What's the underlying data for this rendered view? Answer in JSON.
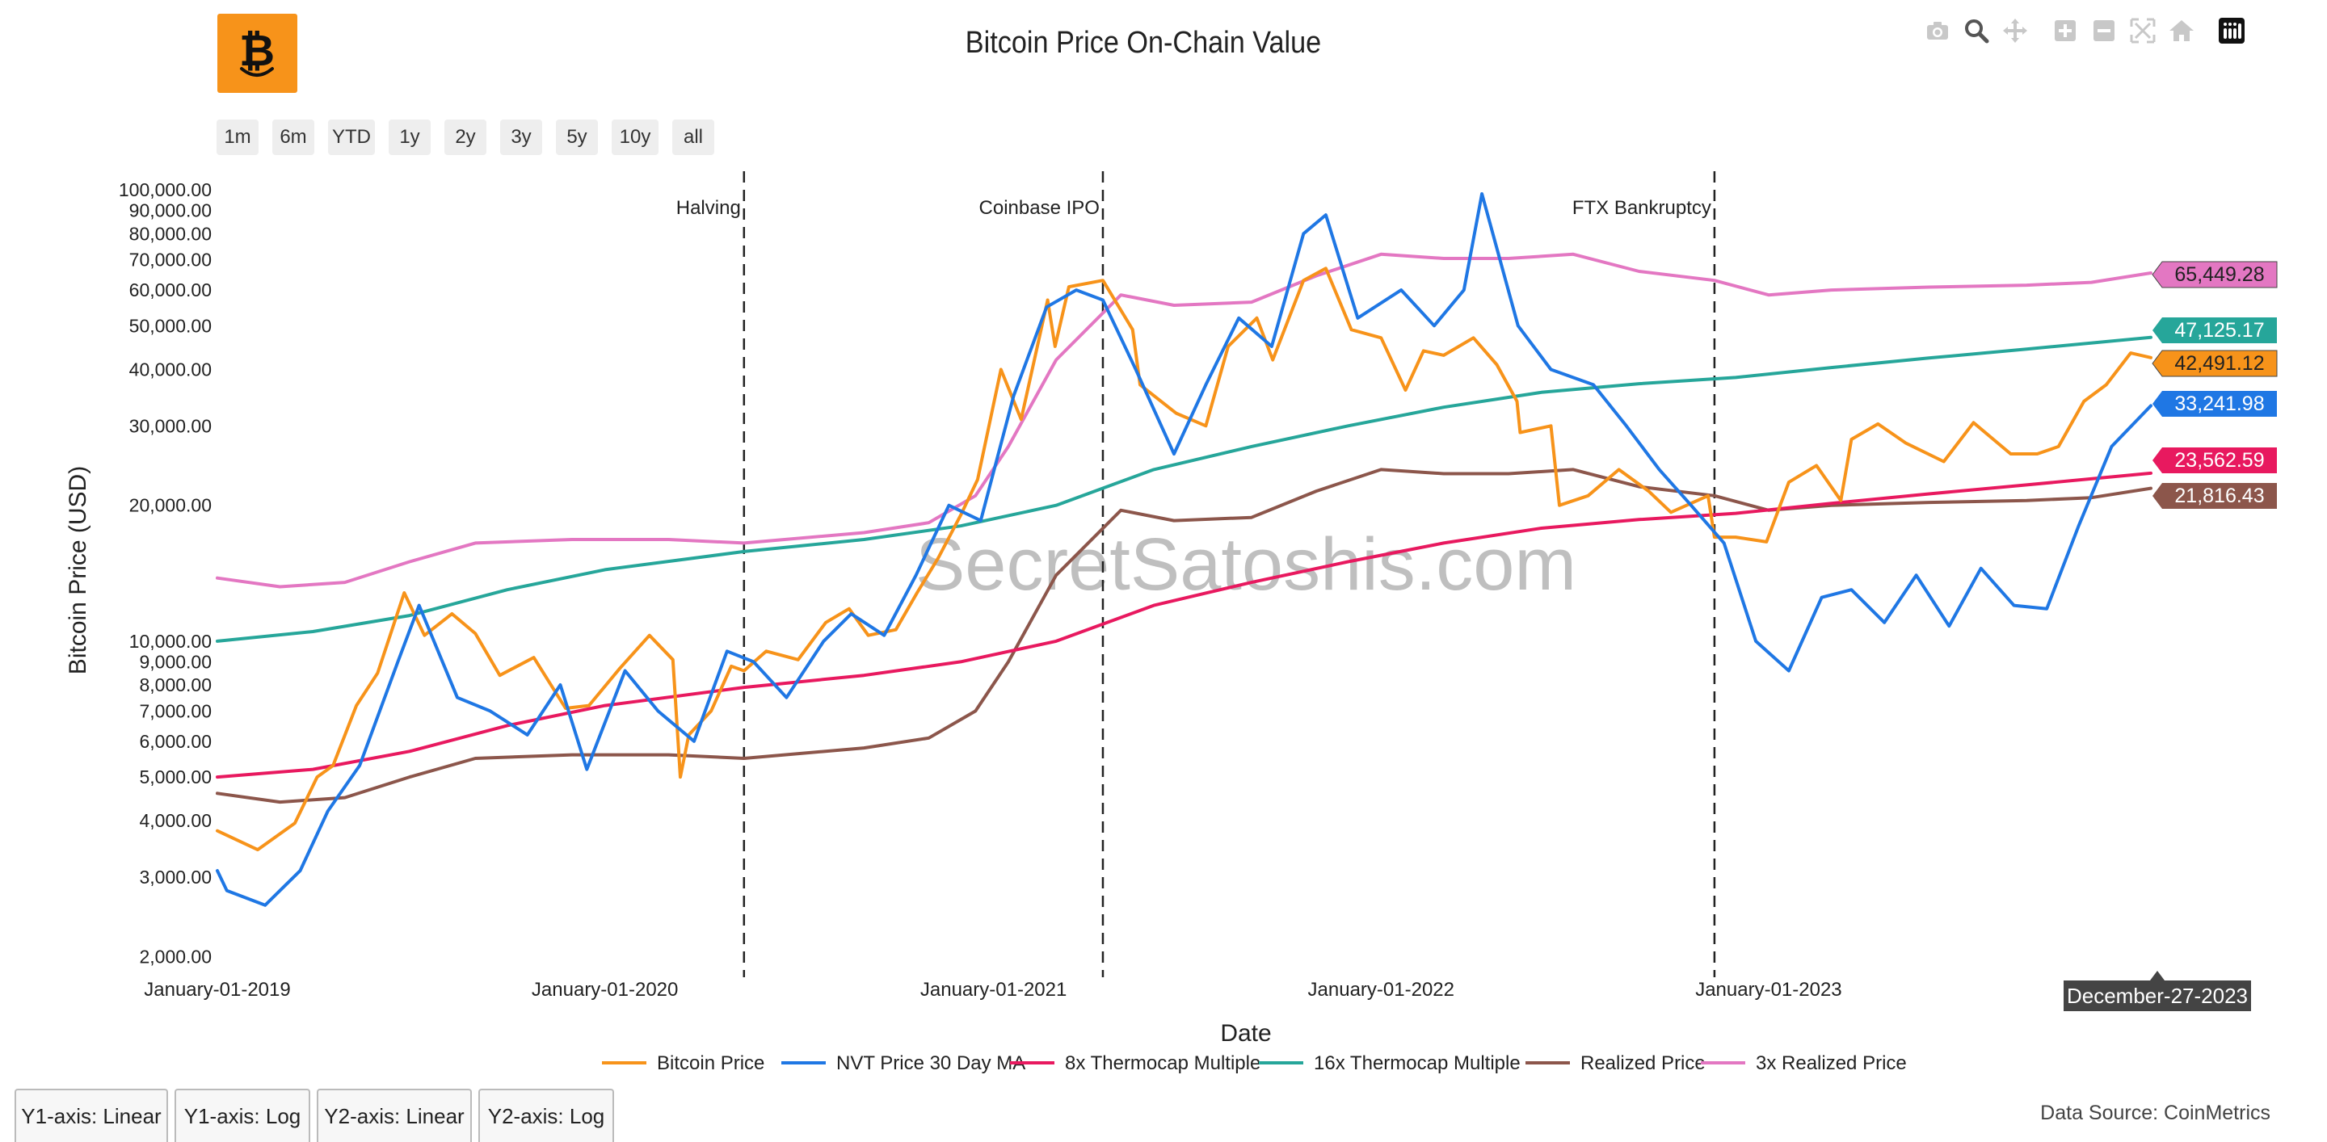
{
  "header": {
    "title": "Bitcoin Price On-Chain Value",
    "logo_icon": "bitcoin-logo-icon"
  },
  "modebar": {
    "icons": [
      "camera-icon",
      "zoom-icon",
      "pan-icon",
      "zoom-in-icon",
      "zoom-out-icon",
      "autoscale-icon",
      "reset-axes-icon",
      "plotly-logo-icon"
    ]
  },
  "range_selector": [
    "1m",
    "6m",
    "YTD",
    "1y",
    "2y",
    "3y",
    "5y",
    "10y",
    "all"
  ],
  "axis_tabs": [
    "Y1-axis: Linear",
    "Y1-axis: Log",
    "Y2-axis: Linear",
    "Y2-axis: Log"
  ],
  "footer": {
    "source": "Data Source: CoinMetrics"
  },
  "watermark": "SecretSatoshis.com",
  "hover_date_label": "December-27-2023",
  "chart_data": {
    "type": "line",
    "title": "Bitcoin Price On-Chain Value",
    "xlabel": "Date",
    "ylabel": "Bitcoin Price (USD)",
    "y_scale": "log",
    "xlim": [
      "2019-01-01",
      "2023-12-27"
    ],
    "ylim": [
      1800,
      110000
    ],
    "x_ticks": [
      "2019-01-01",
      "2020-01-01",
      "2021-01-01",
      "2022-01-01",
      "2023-01-01"
    ],
    "x_tick_labels": [
      "January-01-2019",
      "January-01-2020",
      "January-01-2021",
      "January-01-2022",
      "January-01-2023"
    ],
    "y_ticks": [
      2000,
      3000,
      4000,
      5000,
      6000,
      7000,
      8000,
      9000,
      10000,
      20000,
      30000,
      40000,
      50000,
      60000,
      70000,
      80000,
      90000,
      100000
    ],
    "y_tick_labels": [
      "2,000.00",
      "3,000.00",
      "4,000.00",
      "5,000.00",
      "6,000.00",
      "7,000.00",
      "8,000.00",
      "9,000.00",
      "10,000.00",
      "20,000.00",
      "30,000.00",
      "40,000.00",
      "50,000.00",
      "60,000.00",
      "70,000.00",
      "80,000.00",
      "90,000.00",
      "100,000.00"
    ],
    "grid": false,
    "legend_position": "bottom",
    "events": [
      {
        "date": "2020-05-11",
        "label": "Halving"
      },
      {
        "date": "2021-04-14",
        "label": "Coinbase IPO"
      },
      {
        "date": "2022-11-11",
        "label": "FTX Bankruptcy"
      }
    ],
    "series": [
      {
        "name": "Bitcoin Price",
        "color": "#f7931a",
        "last_label": "42,491.12",
        "x": [
          "2019-01-01",
          "2019-02-08",
          "2019-03-15",
          "2019-04-05",
          "2019-04-20",
          "2019-05-12",
          "2019-06-01",
          "2019-06-26",
          "2019-07-15",
          "2019-08-10",
          "2019-09-01",
          "2019-09-24",
          "2019-10-26",
          "2019-11-25",
          "2019-12-17",
          "2020-01-15",
          "2020-02-12",
          "2020-03-05",
          "2020-03-12",
          "2020-03-20",
          "2020-04-10",
          "2020-04-29",
          "2020-05-11",
          "2020-06-01",
          "2020-07-01",
          "2020-07-27",
          "2020-08-18",
          "2020-09-05",
          "2020-10-01",
          "2020-10-21",
          "2020-11-10",
          "2020-12-01",
          "2020-12-17",
          "2021-01-08",
          "2021-01-27",
          "2021-02-21",
          "2021-02-28",
          "2021-03-13",
          "2021-04-14",
          "2021-05-12",
          "2021-05-19",
          "2021-06-22",
          "2021-07-20",
          "2021-08-10",
          "2021-09-06",
          "2021-09-21",
          "2021-10-20",
          "2021-11-10",
          "2021-12-04",
          "2022-01-01",
          "2022-01-24",
          "2022-02-10",
          "2022-03-01",
          "2022-03-29",
          "2022-04-20",
          "2022-05-09",
          "2022-05-12",
          "2022-06-10",
          "2022-06-18",
          "2022-07-15",
          "2022-08-13",
          "2022-09-10",
          "2022-10-01",
          "2022-11-05",
          "2022-11-11",
          "2022-12-01",
          "2022-12-30",
          "2023-01-20",
          "2023-02-15",
          "2023-03-10",
          "2023-03-20",
          "2023-04-14",
          "2023-05-10",
          "2023-06-15",
          "2023-07-13",
          "2023-08-17",
          "2023-09-11",
          "2023-10-01",
          "2023-10-25",
          "2023-11-15",
          "2023-12-08",
          "2023-12-27"
        ],
        "y": [
          3800,
          3450,
          3950,
          5000,
          5300,
          7200,
          8500,
          12800,
          10300,
          11500,
          10400,
          8400,
          9200,
          7100,
          7200,
          8700,
          10300,
          9100,
          5000,
          6200,
          7000,
          8800,
          8600,
          9500,
          9100,
          11000,
          11800,
          10300,
          10600,
          12800,
          15300,
          19000,
          22800,
          40000,
          31000,
          57000,
          45000,
          61000,
          63000,
          49000,
          37000,
          32000,
          30000,
          45000,
          52000,
          42000,
          63000,
          67000,
          49000,
          47000,
          36000,
          44000,
          43000,
          47000,
          41000,
          34000,
          29000,
          30000,
          20000,
          21000,
          24000,
          21500,
          19300,
          21000,
          17000,
          17000,
          16600,
          22500,
          24500,
          20500,
          28000,
          30300,
          27500,
          25000,
          30500,
          26000,
          26000,
          27000,
          34000,
          37000,
          43500,
          42491.12
        ]
      },
      {
        "name": "NVT Price 30 Day MA",
        "color": "#1f77e4",
        "last_label": "33,241.98",
        "x": [
          "2019-01-01",
          "2019-01-10",
          "2019-02-15",
          "2019-03-20",
          "2019-04-15",
          "2019-05-15",
          "2019-06-20",
          "2019-07-10",
          "2019-08-15",
          "2019-09-15",
          "2019-10-20",
          "2019-11-20",
          "2019-12-15",
          "2020-01-20",
          "2020-02-20",
          "2020-03-25",
          "2020-04-25",
          "2020-05-20",
          "2020-06-20",
          "2020-07-25",
          "2020-08-20",
          "2020-09-20",
          "2020-10-20",
          "2020-11-20",
          "2020-12-20",
          "2021-01-20",
          "2021-02-20",
          "2021-03-20",
          "2021-04-14",
          "2021-05-15",
          "2021-06-20",
          "2021-07-20",
          "2021-08-20",
          "2021-09-20",
          "2021-10-20",
          "2021-11-10",
          "2021-12-10",
          "2022-01-20",
          "2022-02-20",
          "2022-03-20",
          "2022-04-06",
          "2022-05-10",
          "2022-06-10",
          "2022-07-20",
          "2022-08-20",
          "2022-09-20",
          "2022-10-20",
          "2022-11-20",
          "2022-12-20",
          "2023-01-20",
          "2023-02-20",
          "2023-03-20",
          "2023-04-20",
          "2023-05-20",
          "2023-06-20",
          "2023-07-20",
          "2023-08-20",
          "2023-09-20",
          "2023-10-20",
          "2023-11-20",
          "2023-12-27"
        ],
        "y": [
          3100,
          2800,
          2600,
          3100,
          4200,
          5300,
          9000,
          12000,
          7500,
          7000,
          6200,
          8000,
          5200,
          8600,
          7000,
          6000,
          9500,
          9000,
          7500,
          10000,
          11500,
          10300,
          14000,
          20000,
          18500,
          35000,
          55000,
          60000,
          57000,
          40000,
          26000,
          37000,
          52000,
          45000,
          80000,
          88000,
          52000,
          60000,
          50000,
          60000,
          98000,
          50000,
          40000,
          37000,
          30000,
          24000,
          20000,
          16500,
          10000,
          8600,
          12500,
          13000,
          11000,
          14000,
          10800,
          14500,
          12000,
          11800,
          18000,
          27000,
          33241.98
        ]
      },
      {
        "name": "8x Thermocap Multiple",
        "color": "#e8195f",
        "last_label": "23,562.59",
        "x": [
          "2019-01-01",
          "2019-04-01",
          "2019-07-01",
          "2019-10-01",
          "2020-01-01",
          "2020-05-11",
          "2020-09-01",
          "2020-12-01",
          "2021-03-01",
          "2021-06-01",
          "2021-09-01",
          "2021-12-01",
          "2022-03-01",
          "2022-06-01",
          "2022-09-01",
          "2022-12-01",
          "2023-03-01",
          "2023-06-01",
          "2023-09-01",
          "2023-12-27"
        ],
        "y": [
          5000,
          5200,
          5700,
          6500,
          7200,
          7900,
          8400,
          9000,
          10000,
          12000,
          13500,
          15000,
          16500,
          17800,
          18600,
          19200,
          20200,
          21200,
          22200,
          23562.59
        ]
      },
      {
        "name": "16x Thermocap Multiple",
        "color": "#26a69a",
        "last_label": "47,125.17",
        "x": [
          "2019-01-01",
          "2019-04-01",
          "2019-07-01",
          "2019-10-01",
          "2020-01-01",
          "2020-05-11",
          "2020-09-01",
          "2020-12-01",
          "2021-03-01",
          "2021-06-01",
          "2021-09-01",
          "2021-12-01",
          "2022-03-01",
          "2022-06-01",
          "2022-09-01",
          "2022-12-01",
          "2023-03-01",
          "2023-06-01",
          "2023-09-01",
          "2023-12-27"
        ],
        "y": [
          10000,
          10500,
          11400,
          13000,
          14400,
          15800,
          16800,
          18000,
          20000,
          24000,
          27000,
          30000,
          33000,
          35600,
          37200,
          38400,
          40400,
          42400,
          44400,
          47125.17
        ]
      },
      {
        "name": "Realized Price",
        "color": "#8c564b",
        "last_label": "21,816.43",
        "x": [
          "2019-01-01",
          "2019-03-01",
          "2019-05-01",
          "2019-07-01",
          "2019-09-01",
          "2019-12-01",
          "2020-03-01",
          "2020-05-11",
          "2020-09-01",
          "2020-11-01",
          "2020-12-15",
          "2021-01-15",
          "2021-03-01",
          "2021-05-01",
          "2021-06-20",
          "2021-09-01",
          "2021-11-01",
          "2022-01-01",
          "2022-03-01",
          "2022-05-01",
          "2022-07-01",
          "2022-09-01",
          "2022-11-11",
          "2023-01-01",
          "2023-03-01",
          "2023-06-01",
          "2023-09-01",
          "2023-11-01",
          "2023-12-27"
        ],
        "y": [
          4600,
          4400,
          4500,
          5000,
          5500,
          5600,
          5600,
          5500,
          5800,
          6100,
          7000,
          9000,
          14000,
          19500,
          18500,
          18800,
          21500,
          24000,
          23500,
          23500,
          24000,
          22000,
          21000,
          19500,
          20000,
          20300,
          20500,
          20800,
          21816.43
        ]
      },
      {
        "name": "3x Realized Price",
        "color": "#e377c2",
        "last_label": "65,449.28",
        "x": [
          "2019-01-01",
          "2019-03-01",
          "2019-05-01",
          "2019-07-01",
          "2019-09-01",
          "2019-12-01",
          "2020-03-01",
          "2020-05-11",
          "2020-09-01",
          "2020-11-01",
          "2020-12-15",
          "2021-01-15",
          "2021-03-01",
          "2021-05-01",
          "2021-06-20",
          "2021-09-01",
          "2021-11-01",
          "2022-01-01",
          "2022-03-01",
          "2022-05-01",
          "2022-07-01",
          "2022-09-01",
          "2022-11-11",
          "2023-01-01",
          "2023-03-01",
          "2023-06-01",
          "2023-09-01",
          "2023-11-01",
          "2023-12-27"
        ],
        "y": [
          13800,
          13200,
          13500,
          15000,
          16500,
          16800,
          16800,
          16500,
          17400,
          18300,
          21000,
          27000,
          42000,
          58500,
          55500,
          56400,
          64500,
          72000,
          70500,
          70500,
          72000,
          66000,
          63000,
          58500,
          60000,
          60900,
          61500,
          62400,
          65449.28
        ]
      }
    ]
  }
}
